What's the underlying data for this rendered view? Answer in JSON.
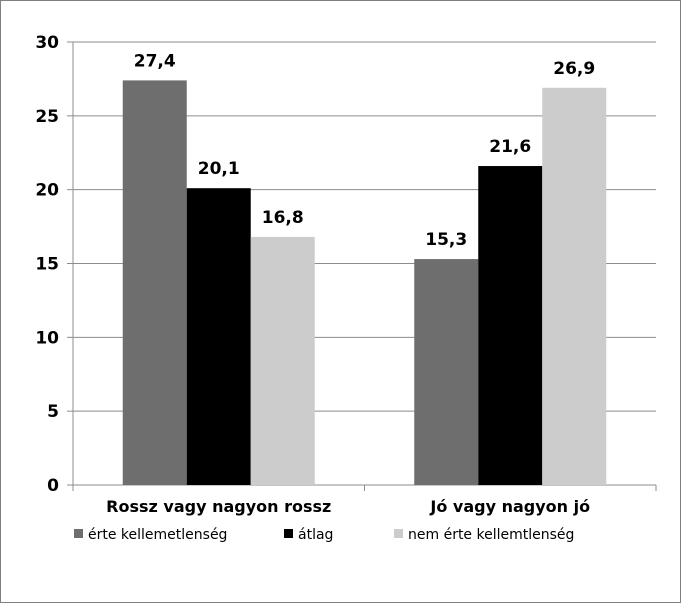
{
  "chart_data": {
    "type": "bar",
    "categories": [
      "Rossz vagy nagyon rossz",
      "Jó vagy nagyon jó"
    ],
    "series": [
      {
        "name": "érte kellemetlenség",
        "values": [
          27.4,
          15.3
        ],
        "labels": [
          "27,4",
          "15,3"
        ],
        "color": "#6e6e6e"
      },
      {
        "name": "átlag",
        "values": [
          20.1,
          21.6
        ],
        "labels": [
          "20,1",
          "21,6"
        ],
        "color": "#000000"
      },
      {
        "name": "nem érte kellemtlenség",
        "values": [
          16.8,
          26.9
        ],
        "labels": [
          "16,8",
          "26,9"
        ],
        "color": "#cccccc"
      }
    ],
    "yticks": [
      "0",
      "5",
      "10",
      "15",
      "20",
      "25",
      "30"
    ],
    "ylim": [
      0,
      30
    ],
    "grid": true,
    "legend": "bottom"
  }
}
